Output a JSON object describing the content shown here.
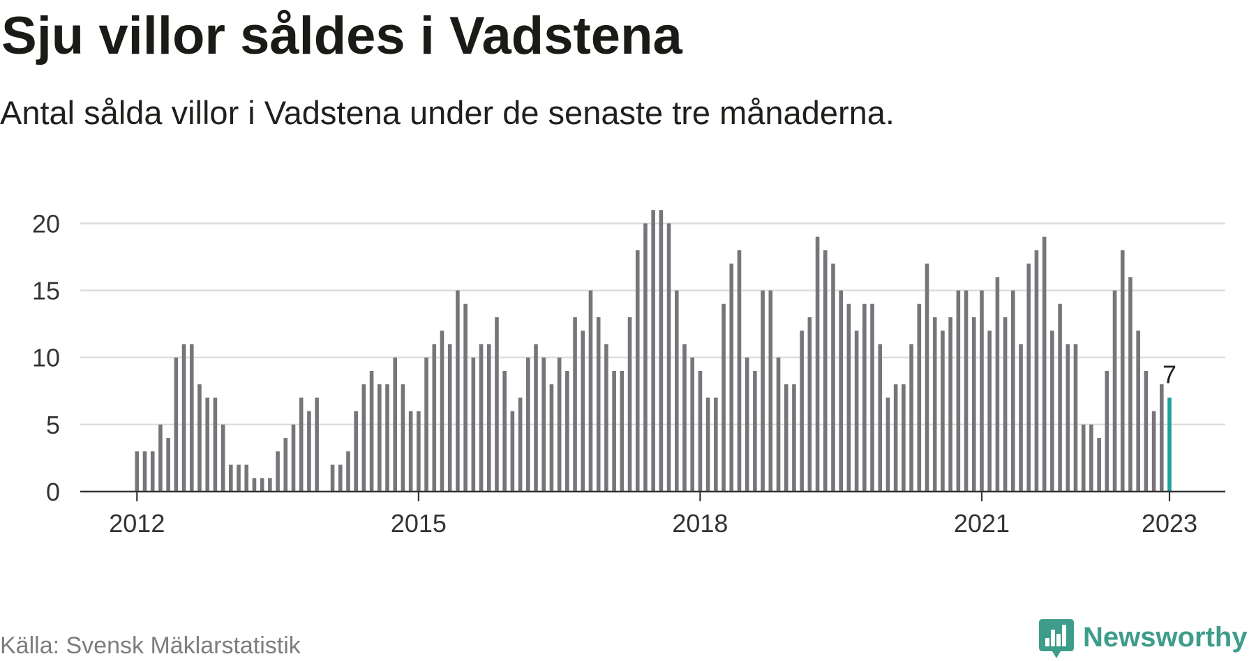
{
  "chart_data": {
    "type": "bar",
    "title": "Sju villor såldes i Vadstena",
    "subtitle": "Antal sålda villor i Vadstena under de senaste tre månaderna.",
    "x": [
      "2012-01",
      "2012-02",
      "2012-03",
      "2012-04",
      "2012-05",
      "2012-06",
      "2012-07",
      "2012-08",
      "2012-09",
      "2012-10",
      "2012-11",
      "2012-12",
      "2013-01",
      "2013-02",
      "2013-03",
      "2013-04",
      "2013-05",
      "2013-06",
      "2013-07",
      "2013-08",
      "2013-09",
      "2013-10",
      "2013-11",
      "2013-12",
      "2014-01",
      "2014-02",
      "2014-03",
      "2014-04",
      "2014-05",
      "2014-06",
      "2014-07",
      "2014-08",
      "2014-09",
      "2014-10",
      "2014-11",
      "2014-12",
      "2015-01",
      "2015-02",
      "2015-03",
      "2015-04",
      "2015-05",
      "2015-06",
      "2015-07",
      "2015-08",
      "2015-09",
      "2015-10",
      "2015-11",
      "2015-12",
      "2016-01",
      "2016-02",
      "2016-03",
      "2016-04",
      "2016-05",
      "2016-06",
      "2016-07",
      "2016-08",
      "2016-09",
      "2016-10",
      "2016-11",
      "2016-12",
      "2017-01",
      "2017-02",
      "2017-03",
      "2017-04",
      "2017-05",
      "2017-06",
      "2017-07",
      "2017-08",
      "2017-09",
      "2017-10",
      "2017-11",
      "2017-12",
      "2018-01",
      "2018-02",
      "2018-03",
      "2018-04",
      "2018-05",
      "2018-06",
      "2018-07",
      "2018-08",
      "2018-09",
      "2018-10",
      "2018-11",
      "2018-12",
      "2019-01",
      "2019-02",
      "2019-03",
      "2019-04",
      "2019-05",
      "2019-06",
      "2019-07",
      "2019-08",
      "2019-09",
      "2019-10",
      "2019-11",
      "2019-12",
      "2020-01",
      "2020-02",
      "2020-03",
      "2020-04",
      "2020-05",
      "2020-06",
      "2020-07",
      "2020-08",
      "2020-09",
      "2020-10",
      "2020-11",
      "2020-12",
      "2021-01",
      "2021-02",
      "2021-03",
      "2021-04",
      "2021-05",
      "2021-06",
      "2021-07",
      "2021-08",
      "2021-09",
      "2021-10",
      "2021-11",
      "2021-12",
      "2022-01",
      "2022-02",
      "2022-03",
      "2022-04",
      "2022-05",
      "2022-06",
      "2022-07",
      "2022-08",
      "2022-09",
      "2022-10",
      "2022-11",
      "2022-12",
      "2023-01"
    ],
    "values": [
      3,
      3,
      3,
      5,
      4,
      10,
      11,
      11,
      8,
      7,
      7,
      5,
      2,
      2,
      2,
      1,
      1,
      1,
      3,
      4,
      5,
      7,
      6,
      7,
      0,
      2,
      2,
      3,
      6,
      8,
      9,
      8,
      8,
      10,
      8,
      6,
      6,
      10,
      11,
      12,
      11,
      15,
      14,
      10,
      11,
      11,
      13,
      9,
      6,
      7,
      10,
      11,
      10,
      8,
      10,
      9,
      13,
      12,
      15,
      13,
      11,
      9,
      9,
      13,
      18,
      20,
      21,
      21,
      20,
      15,
      11,
      10,
      9,
      7,
      7,
      14,
      17,
      18,
      10,
      9,
      15,
      15,
      10,
      8,
      8,
      12,
      13,
      19,
      18,
      17,
      15,
      14,
      12,
      14,
      14,
      11,
      7,
      8,
      8,
      11,
      14,
      17,
      13,
      12,
      13,
      15,
      15,
      13,
      15,
      12,
      16,
      13,
      15,
      11,
      17,
      18,
      19,
      12,
      14,
      11,
      11,
      5,
      5,
      4,
      9,
      15,
      18,
      16,
      12,
      9,
      6,
      8,
      7
    ],
    "xlim": [
      "2012-01",
      "2023-01"
    ],
    "ylim": [
      0,
      21
    ],
    "yticks": [
      0,
      5,
      10,
      15,
      20
    ],
    "xticks": [
      {
        "label": "2012",
        "at": "2012-01"
      },
      {
        "label": "2015",
        "at": "2015-01"
      },
      {
        "label": "2018",
        "at": "2018-01"
      },
      {
        "label": "2021",
        "at": "2021-01"
      },
      {
        "label": "2023",
        "at": "2023-01"
      }
    ],
    "highlight": {
      "at": "2023-01",
      "label": "7"
    },
    "grid": true
  },
  "footer": {
    "source": "Källa: Svensk Mäklarstatistik",
    "brand": "Newsworthy"
  },
  "icons": {
    "brand_logo": "newsworthy-logo-icon"
  },
  "colors": {
    "bar": "#76767a",
    "highlight": "#1ea19a",
    "grid": "#dcdcdc",
    "axis": "#333333",
    "tick_text": "#333333",
    "label_text": "#222222",
    "brand": "#3e9c8b"
  }
}
